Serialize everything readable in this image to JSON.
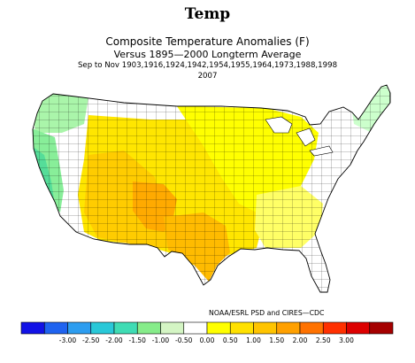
{
  "header": {
    "heading": "Temp"
  },
  "map": {
    "title": "Composite Temperature Anomalies (F)",
    "subtitle": "Versus 1895—2000 Longterm Average",
    "period_line": "Sep to Nov  1903,1916,1924,1942,1954,1955,1964,1973,1988,1998",
    "period_line2": "2007",
    "region": "Contiguous United States (climate divisions)",
    "color_ranges": {
      "Pacific Northwest coast": "-0.50 to 0.00",
      "California coast": "-1.00 to -0.50",
      "Great Plains": "0.50 to 1.00",
      "Southwest / Colorado Plateau": "1.00 to 1.50",
      "Southeast": "0.00 to 0.50",
      "New England": "-0.50 to 0.00"
    }
  },
  "credit": "NOAA/ESRL PSD and CIRES—CDC",
  "colorbar": {
    "levels": [
      "-3.00",
      "-2.50",
      "-2.00",
      "-1.50",
      "-1.00",
      "-0.50",
      "0.00",
      "0.50",
      "1.00",
      "1.50",
      "2.00",
      "2.50",
      "3.00"
    ],
    "colors": [
      "#1212e6",
      "#1f63f0",
      "#2d9df0",
      "#29c8d8",
      "#3fdcb4",
      "#86ec8a",
      "#d4f5c4",
      "#ffffff",
      "#ffff00",
      "#ffe100",
      "#ffc400",
      "#ffa000",
      "#ff7200",
      "#ff3000",
      "#dd0000",
      "#a50000"
    ]
  }
}
